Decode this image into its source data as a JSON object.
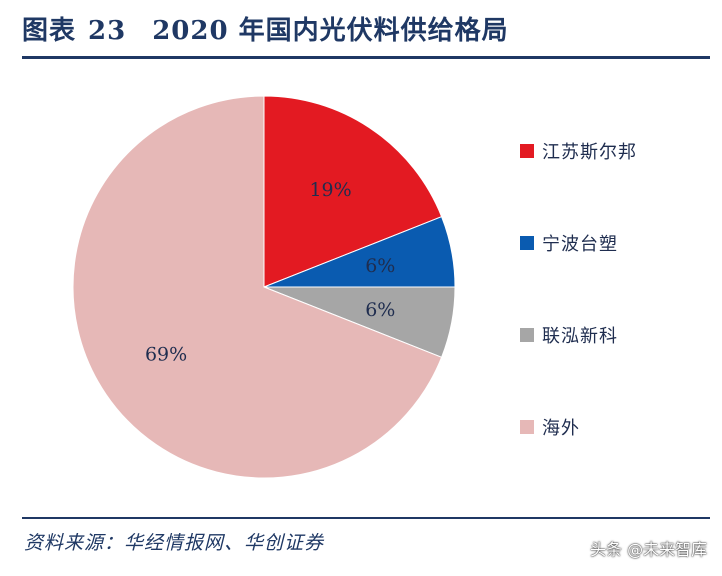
{
  "header": {
    "label": "图表",
    "number": "23",
    "title": "2020 年国内光伏料供给格局"
  },
  "chart_data": {
    "type": "pie",
    "start_angle_deg": 0,
    "direction": "clockwise",
    "slices": [
      {
        "name": "江苏斯尔邦",
        "value": 19,
        "label": "19%",
        "color": "#e31a22"
      },
      {
        "name": "宁波台塑",
        "value": 6,
        "label": "6%",
        "color": "#0a5bb0"
      },
      {
        "name": "联泓新科",
        "value": 6,
        "label": "6%",
        "color": "#a6a6a6"
      },
      {
        "name": "海外",
        "value": 69,
        "label": "69%",
        "color": "#e6b8b7"
      }
    ],
    "legend_placement": "right"
  },
  "footer": {
    "source": "资料来源：华经情报网、华创证券",
    "watermark": "头条 @未来智库"
  }
}
